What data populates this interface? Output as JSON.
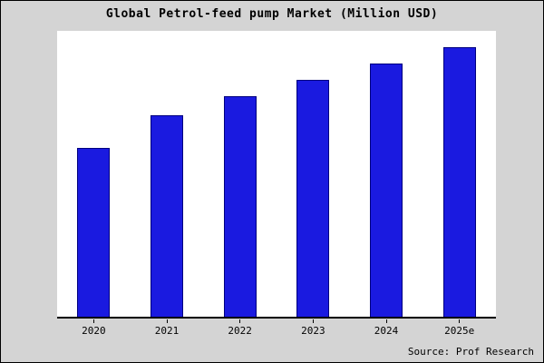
{
  "chart_data": {
    "type": "bar",
    "title": "Global Petrol-feed pump Market (Million USD)",
    "categories": [
      "2020",
      "2021",
      "2022",
      "2023",
      "2024",
      "2025e"
    ],
    "values": [
      62,
      74,
      81,
      87,
      93,
      99
    ],
    "ylim": [
      0,
      105
    ],
    "xlabel": "",
    "ylabel": "",
    "grid": false,
    "legend": "none",
    "bar_color": "#1a1ae0",
    "bar_border_color": "#00007f",
    "background_color": "#d4d4d4",
    "plot_background_color": "#ffffff",
    "source": "Source: Prof Research"
  }
}
